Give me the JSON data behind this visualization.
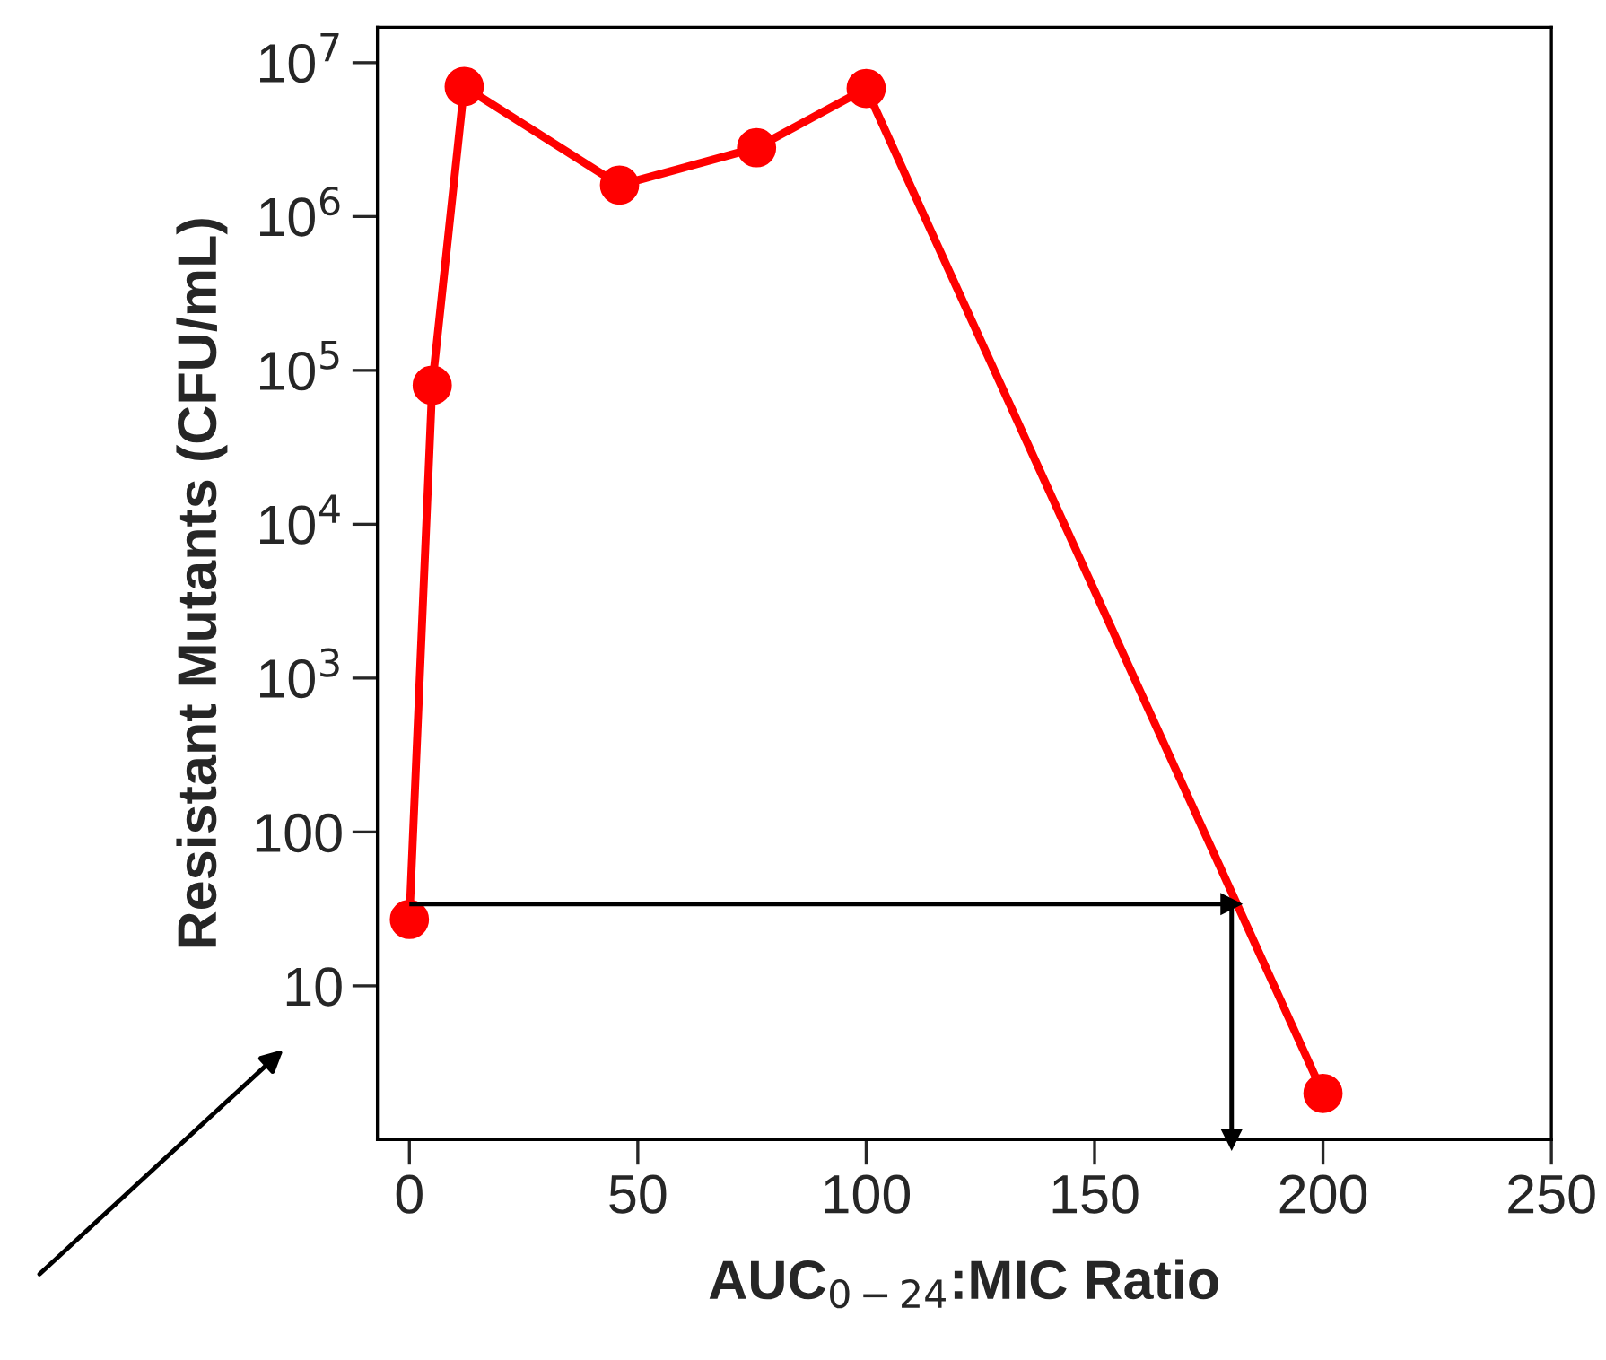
{
  "chart_data": {
    "type": "line",
    "xlabel": "AUC$_{0−24}$:MIC Ratio",
    "ylabel": "Resistant Mutants (CFU/mL)",
    "x": [
      0,
      5,
      12,
      46,
      76,
      100,
      200
    ],
    "series": [
      {
        "color": "#ff0000",
        "values": [
          27,
          80000,
          7000000,
          1600000,
          2800000,
          6800000,
          2
        ]
      }
    ],
    "log": "y",
    "marker": "circle",
    "grid": false,
    "xlim": [
      -7,
      250
    ],
    "xticks": [
      0,
      50,
      100,
      150,
      200,
      250
    ],
    "ylim": [
      1,
      17000000
    ],
    "yticks": [
      10,
      100,
      {
        "value": 1000,
        "label": "10$^{3}$"
      },
      {
        "value": 10000,
        "label": "10$^{4}$"
      },
      {
        "value": 100000,
        "label": "10$^{5}$"
      },
      {
        "value": 1000000,
        "label": "10$^{6}$"
      },
      {
        "value": 10000000,
        "label": "10$^{7}$"
      }
    ],
    "ref_lines": [
      {
        "axis": "y",
        "value": 34,
        "color": "#000000"
      },
      {
        "axis": "x",
        "value": 180,
        "color": "#000000"
      }
    ]
  }
}
